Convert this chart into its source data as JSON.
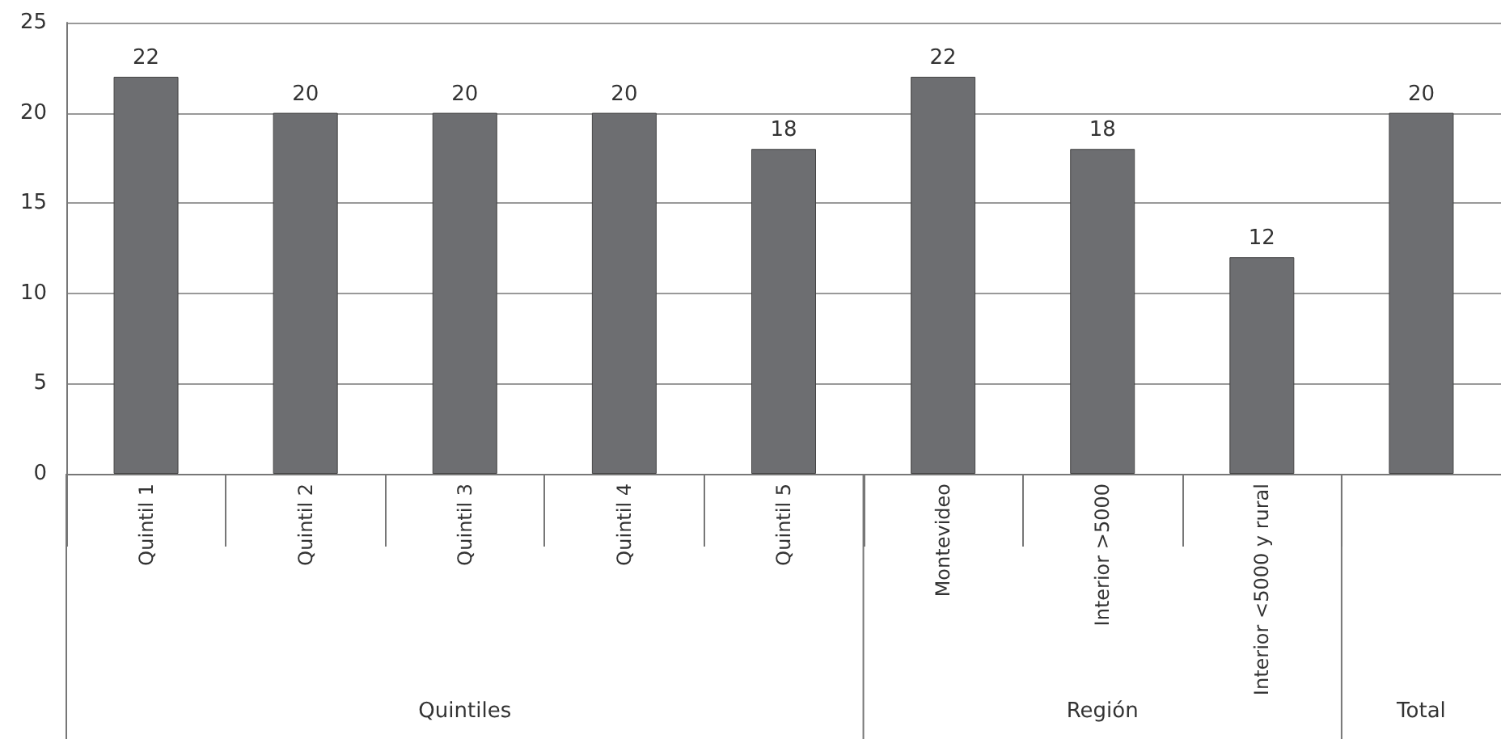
{
  "chart_data": {
    "type": "bar",
    "categories": [
      "Quintil 1",
      "Quintil 2",
      "Quintil 3",
      "Quintil 4",
      "Quintil 5",
      "Montevideo",
      "Interior >5000",
      "Interior <5000 y rural",
      null
    ],
    "values": [
      22,
      20,
      20,
      20,
      18,
      22,
      18,
      12,
      20
    ],
    "color": "#6d6e71",
    "ylim": [
      0,
      25
    ],
    "yticks": [
      0,
      5,
      10,
      15,
      20,
      25
    ],
    "grid": "y",
    "data_labels": true,
    "annotations": [
      "Quintiles",
      "Región",
      "Total"
    ]
  }
}
